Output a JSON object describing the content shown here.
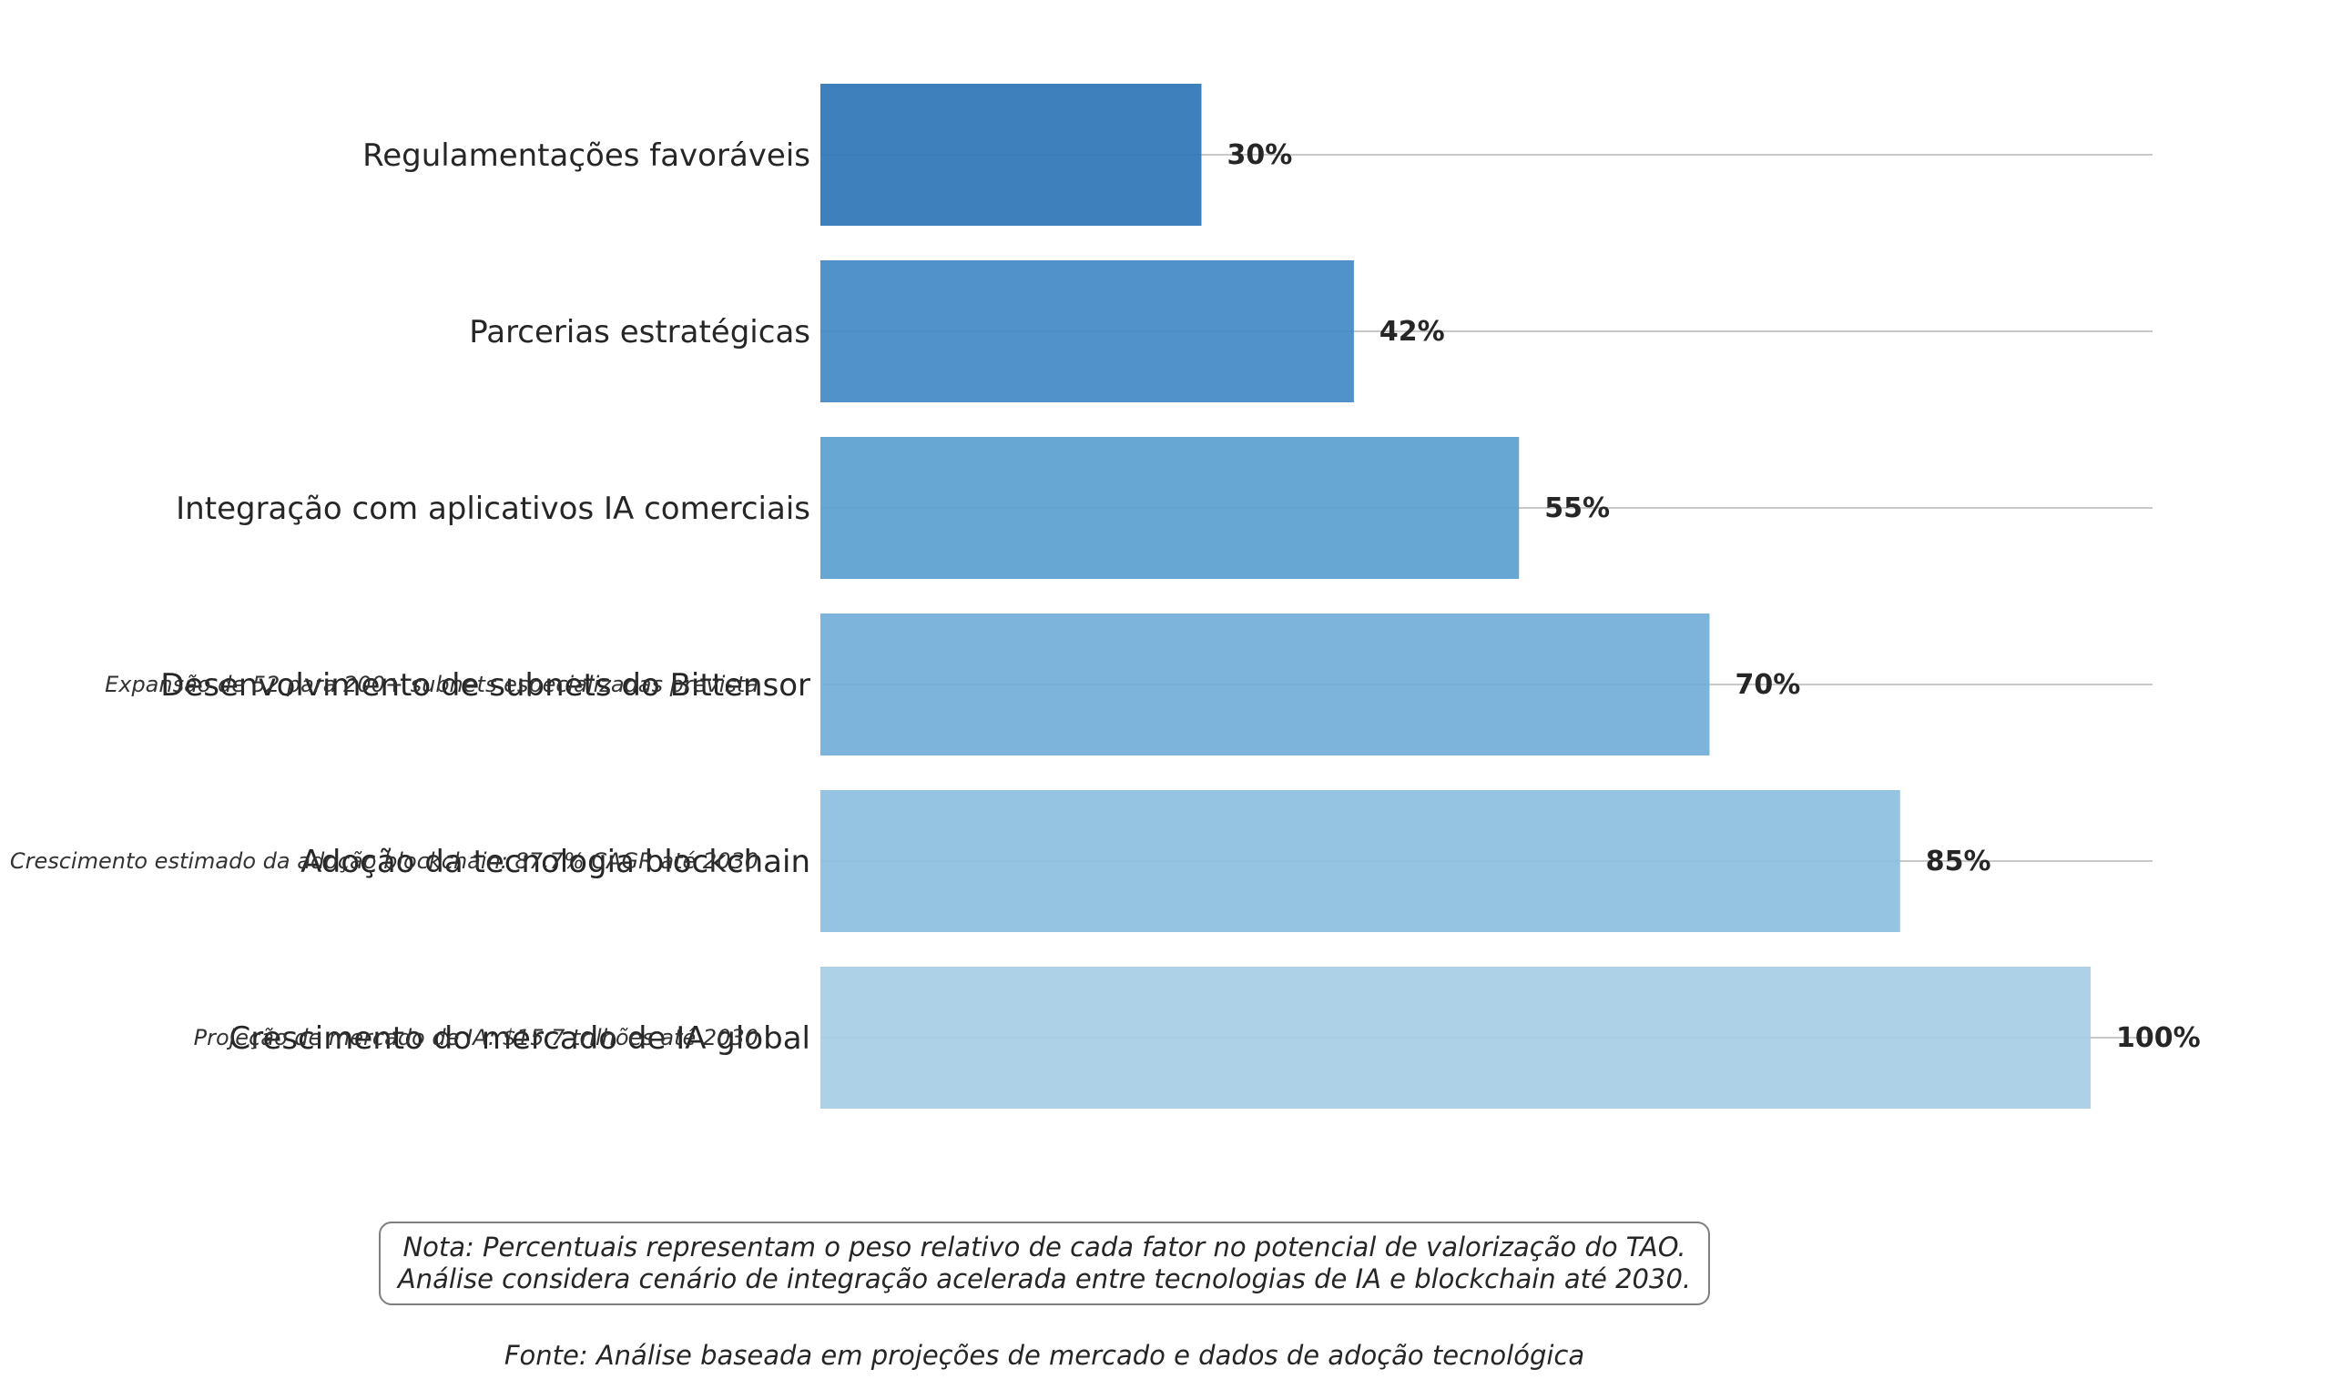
{
  "chart_data": {
    "type": "bar",
    "orientation": "horizontal",
    "categories": [
      "Regulamentações favoráveis",
      "Parcerias estratégicas",
      "Integração com aplicativos IA comerciais",
      "Desenvolvimento de subnets do Bittensor",
      "Adoção da tecnologia blockchain",
      "Crescimento do mercado de IA global"
    ],
    "values": [
      30,
      42,
      55,
      70,
      85,
      100
    ],
    "value_labels": [
      "30%",
      "42%",
      "55%",
      "70%",
      "85%",
      "100%"
    ],
    "colors": [
      "#2e75b6",
      "#4389c6",
      "#5a9fd0",
      "#72aed8",
      "#8bbfe0",
      "#a6cde5"
    ],
    "annotations": [
      "",
      "",
      "",
      "Expansão de 52 para 200+ subnets especializadas prevista",
      "Crescimento estimado da adoção blockchain: 87.7% CAGR até 2030",
      "Projeção de mercado de IA: $15.7 trilhões até 2030"
    ],
    "xlim": [
      0,
      105
    ],
    "grid": true,
    "legend": "none"
  },
  "note": {
    "line1": "Nota: Percentuais representam o peso relativo de cada fator no potencial de valorização do TAO.",
    "line2": "Análise considera cenário de integração acelerada entre tecnologias de IA e blockchain até 2030."
  },
  "source": "Fonte: Análise baseada em projeções de mercado e dados de adoção tecnológica"
}
